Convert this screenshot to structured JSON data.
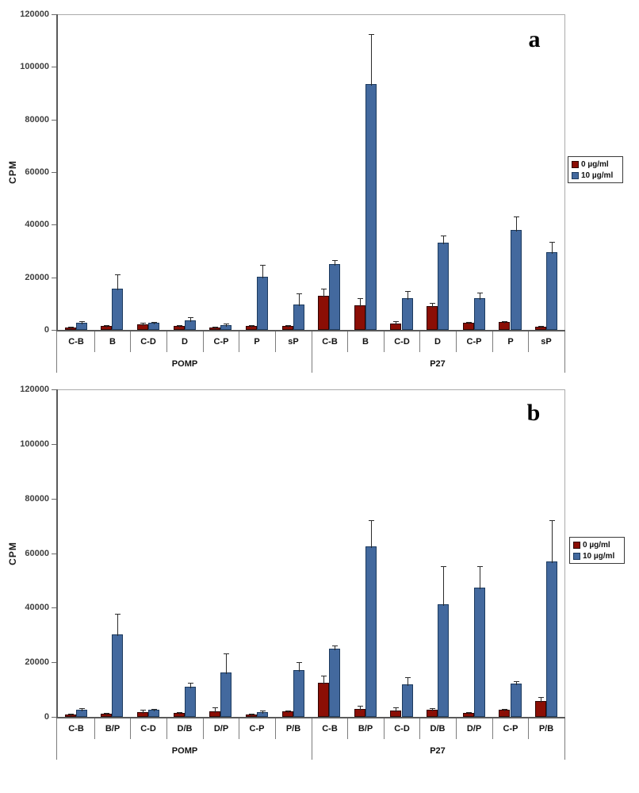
{
  "figure": {
    "background": "#FFFFFF"
  },
  "colors": {
    "series0_fill": "#8B0E05",
    "series0_border": "#300502",
    "series1_fill": "#43699E",
    "series1_border": "#1C3A5E",
    "axis": "#5a5a5a",
    "tick_label": "#404040",
    "plot_border": "#ababab",
    "divider": "#7c7c7c",
    "error_bar": "#2b2b2b"
  },
  "chart_data": [
    {
      "type": "bar",
      "panel_label": "a",
      "ylabel": "CPM",
      "xlabel": "",
      "ylim": [
        0,
        120000
      ],
      "ytick_step": 20000,
      "ytick_labels": [
        "0",
        "20000",
        "40000",
        "60000",
        "80000",
        "100000",
        "120000"
      ],
      "grid": false,
      "legend_position": "right-outside",
      "legend": [
        {
          "label": "0 µg/ml"
        },
        {
          "label": "10 µg/ml"
        }
      ],
      "groups": [
        {
          "label": "POMP",
          "span": 7
        },
        {
          "label": "P27",
          "span": 7
        }
      ],
      "categories": [
        "C-B",
        "B",
        "C-D",
        "D",
        "C-P",
        "P",
        "sP",
        "C-B",
        "B",
        "C-D",
        "D",
        "C-P",
        "P",
        "sP"
      ],
      "series": [
        {
          "name": "0 µg/ml",
          "values": [
            1000,
            1500,
            2200,
            1400,
            800,
            1600,
            1500,
            12900,
            9300,
            2500,
            9000,
            2800,
            3000,
            1300
          ],
          "errors": [
            300,
            400,
            500,
            300,
            300,
            400,
            300,
            2700,
            2700,
            800,
            1100,
            400,
            400,
            300
          ]
        },
        {
          "name": "10 µg/ml",
          "values": [
            2800,
            15600,
            2800,
            3600,
            1800,
            20100,
            9600,
            25100,
            93400,
            12000,
            33100,
            12100,
            38000,
            29600
          ],
          "errors": [
            600,
            5500,
            400,
            1200,
            700,
            4500,
            4100,
            1500,
            18900,
            2800,
            2700,
            2000,
            5100,
            3800
          ]
        }
      ]
    },
    {
      "type": "bar",
      "panel_label": "b",
      "ylabel": "CPM",
      "xlabel": "",
      "ylim": [
        0,
        120000
      ],
      "ytick_step": 20000,
      "ytick_labels": [
        "0",
        "20000",
        "40000",
        "60000",
        "80000",
        "100000",
        "120000"
      ],
      "grid": false,
      "legend_position": "right-outside",
      "legend": [
        {
          "label": "0 µg/ml"
        },
        {
          "label": "10 µg/ml"
        }
      ],
      "groups": [
        {
          "label": "POMP",
          "span": 7
        },
        {
          "label": "P27",
          "span": 7
        }
      ],
      "categories": [
        "C-B",
        "B/P",
        "C-D",
        "D/B",
        "D/P",
        "C-P",
        "P/B",
        "C-B",
        "B/P",
        "C-D",
        "D/B",
        "D/P",
        "C-P",
        "P/B"
      ],
      "series": [
        {
          "name": "0 µg/ml",
          "values": [
            1000,
            1200,
            1700,
            1500,
            2100,
            800,
            1900,
            12600,
            2800,
            2300,
            2500,
            1500,
            2600,
            5900
          ],
          "errors": [
            300,
            300,
            900,
            300,
            1400,
            200,
            400,
            2600,
            1100,
            1100,
            500,
            400,
            400,
            1500
          ]
        },
        {
          "name": "10 µg/ml",
          "values": [
            2600,
            30200,
            2500,
            11000,
            16400,
            1700,
            17200,
            24900,
            62500,
            12000,
            41400,
            47500,
            12300,
            56900
          ],
          "errors": [
            700,
            7600,
            300,
            1500,
            7100,
            700,
            3000,
            1200,
            9600,
            2700,
            14000,
            7800,
            1000,
            15200
          ]
        }
      ]
    }
  ]
}
